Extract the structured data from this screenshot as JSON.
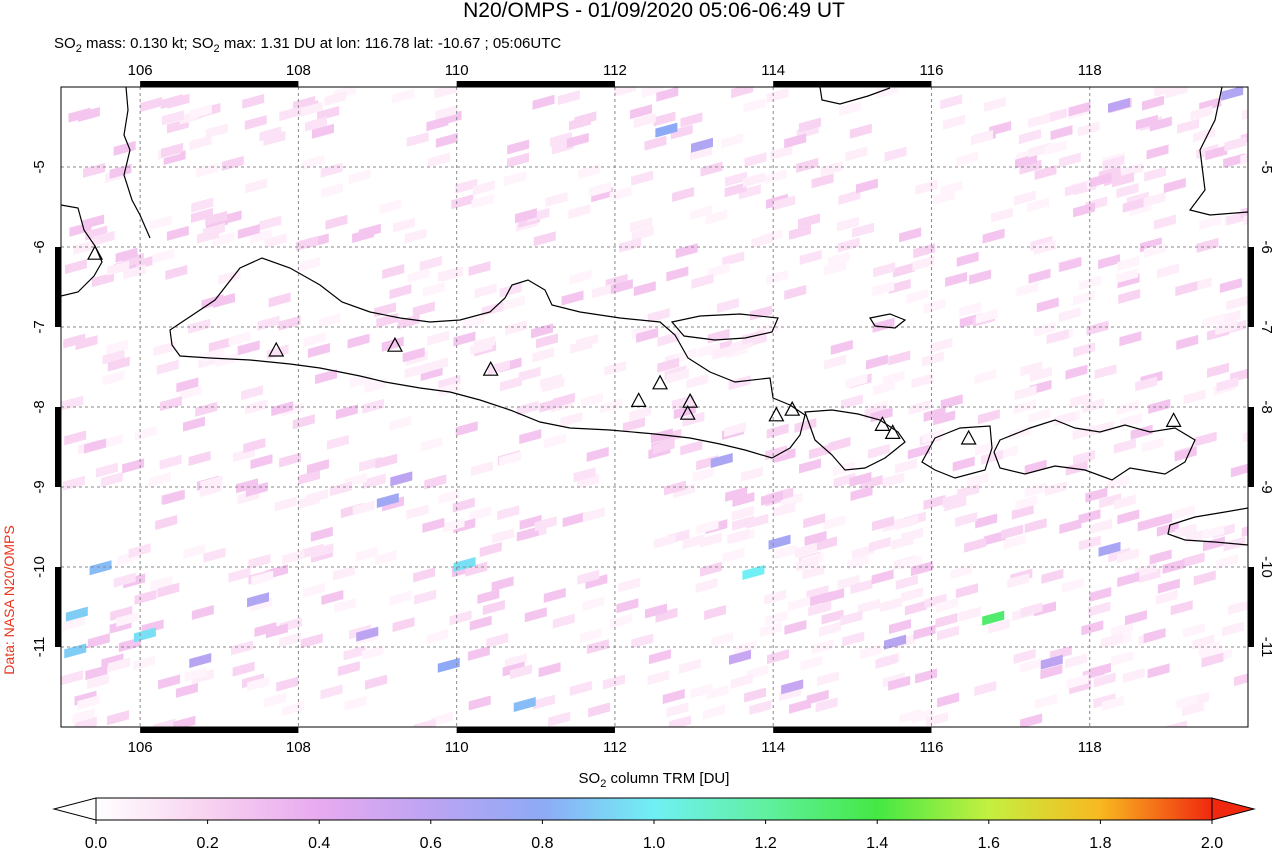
{
  "chart_data": {
    "type": "map",
    "title": "N20/OMPS - 01/09/2020 05:06-06:49 UT",
    "subtitle": [
      "SO",
      "2",
      " mass: 0.130 kt; SO",
      "2",
      " max: 1.31 DU at lon: 116.78 lat: -10.67 ; 05:06UTC"
    ],
    "credit": "Data: NASA N20/OMPS",
    "xlim": [
      105,
      120
    ],
    "ylim": [
      -12,
      -4
    ],
    "xticks": [
      106,
      108,
      110,
      112,
      114,
      116,
      118
    ],
    "yticks": [
      -5,
      -6,
      -7,
      -8,
      -9,
      -10,
      -11
    ],
    "grid": true,
    "volcanoes": [
      {
        "lon": 105.43,
        "lat": -6.09
      },
      {
        "lon": 107.72,
        "lat": -7.3
      },
      {
        "lon": 109.22,
        "lat": -7.24
      },
      {
        "lon": 110.43,
        "lat": -7.54
      },
      {
        "lon": 112.3,
        "lat": -7.93
      },
      {
        "lon": 112.57,
        "lat": -7.71
      },
      {
        "lon": 112.95,
        "lat": -7.94
      },
      {
        "lon": 112.92,
        "lat": -8.09
      },
      {
        "lon": 114.04,
        "lat": -8.11
      },
      {
        "lon": 114.24,
        "lat": -8.04
      },
      {
        "lon": 115.38,
        "lat": -8.23
      },
      {
        "lon": 115.51,
        "lat": -8.33
      },
      {
        "lon": 116.47,
        "lat": -8.4
      },
      {
        "lon": 119.06,
        "lat": -8.18
      }
    ],
    "pixels": [
      {
        "lon": 116.78,
        "lat": -10.67,
        "value": 1.31
      },
      {
        "lon": 113.75,
        "lat": -10.1,
        "value": 1.0
      },
      {
        "lon": 110.1,
        "lat": -10.0,
        "value": 0.95
      },
      {
        "lon": 112.65,
        "lat": -4.57,
        "value": 0.8
      },
      {
        "lon": 113.1,
        "lat": -4.76,
        "value": 0.65
      },
      {
        "lon": 113.35,
        "lat": -8.7,
        "value": 0.68
      },
      {
        "lon": 114.08,
        "lat": -9.72,
        "value": 0.7
      },
      {
        "lon": 109.13,
        "lat": -9.2,
        "value": 0.72
      },
      {
        "lon": 109.3,
        "lat": -8.93,
        "value": 0.6
      },
      {
        "lon": 110.86,
        "lat": -11.75,
        "value": 0.85
      },
      {
        "lon": 109.9,
        "lat": -11.26,
        "value": 0.8
      },
      {
        "lon": 118.25,
        "lat": -9.81,
        "value": 0.68
      },
      {
        "lon": 118.37,
        "lat": -4.26,
        "value": 0.6
      },
      {
        "lon": 119.8,
        "lat": -4.11,
        "value": 0.65
      },
      {
        "lon": 105.5,
        "lat": -10.04,
        "value": 0.85
      },
      {
        "lon": 105.2,
        "lat": -10.62,
        "value": 0.9
      },
      {
        "lon": 106.06,
        "lat": -10.88,
        "value": 0.95
      },
      {
        "lon": 105.18,
        "lat": -11.08,
        "value": 0.9
      },
      {
        "lon": 115.54,
        "lat": -10.97,
        "value": 0.62
      },
      {
        "lon": 114.24,
        "lat": -11.53,
        "value": 0.55
      },
      {
        "lon": 113.58,
        "lat": -11.16,
        "value": 0.55
      },
      {
        "lon": 108.87,
        "lat": -10.87,
        "value": 0.6
      },
      {
        "lon": 106.76,
        "lat": -11.2,
        "value": 0.62
      },
      {
        "lon": 107.49,
        "lat": -10.44,
        "value": 0.65
      },
      {
        "lon": 117.52,
        "lat": -11.22,
        "value": 0.6
      }
    ],
    "colorbar": {
      "label": [
        "SO",
        "2",
        " column TRM [DU]"
      ],
      "lim": [
        0,
        2
      ],
      "ticks": [
        {
          "value": 0,
          "label": "0.0"
        },
        0.2,
        0.4,
        0.6,
        0.8,
        {
          "value": 1,
          "label": "1.0"
        },
        1.2,
        1.4,
        1.6,
        1.8,
        {
          "value": 2,
          "label": "2.0"
        }
      ],
      "colors": [
        "#ffffff",
        "#f8d2f0",
        "#e8aaf0",
        "#bca4f2",
        "#8eaaf6",
        "#70f0f4",
        "#60f0a0",
        "#44e844",
        "#c4f040",
        "#f8b820",
        "#f02810"
      ]
    }
  }
}
